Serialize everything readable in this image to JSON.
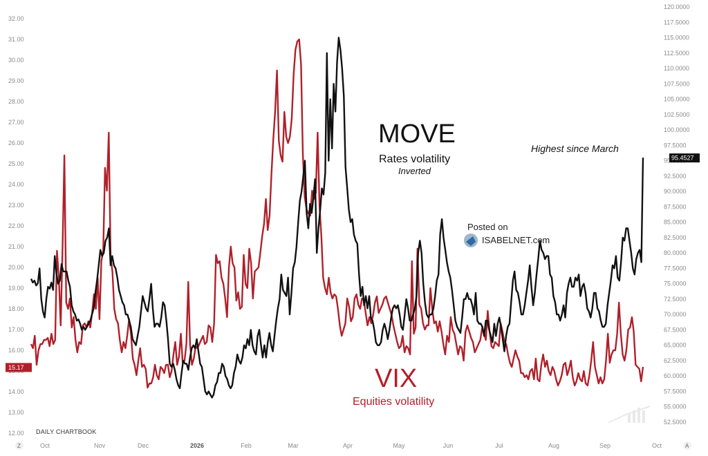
{
  "chart_data": {
    "type": "line",
    "title": "",
    "source": "DAILY CHARTBOOK",
    "x_ticks": [
      "Oct",
      "Nov",
      "Dec",
      "2026",
      "Feb",
      "Mar",
      "Apr",
      "May",
      "Jun",
      "Jul",
      "Aug",
      "Sep",
      "Oct"
    ],
    "left_axis": {
      "labels": [
        "32.00",
        "31.00",
        "30.00",
        "29.00",
        "28.00",
        "27.00",
        "26.00",
        "25.00",
        "24.00",
        "23.00",
        "22.00",
        "21.00",
        "20.00",
        "19.00",
        "18.00",
        "17.00",
        "16.00",
        "15.00",
        "14.00",
        "13.00",
        "12.00"
      ],
      "range": [
        12,
        32.5
      ]
    },
    "right_axis": {
      "labels": [
        "120.0000",
        "117.5000",
        "115.0000",
        "112.5000",
        "110.0000",
        "107.5000",
        "105.0000",
        "102.5000",
        "100.0000",
        "97.5000",
        "95.0000",
        "92.5000",
        "90.0000",
        "87.5000",
        "85.0000",
        "82.5000",
        "80.0000",
        "77.5000",
        "75.0000",
        "72.5000",
        "70.0000",
        "67.5000",
        "65.0000",
        "62.5000",
        "60.0000",
        "57.5000",
        "55.0000",
        "52.5000"
      ],
      "range": [
        50.2,
        120.3
      ],
      "inverted": true,
      "note": "Inverted"
    },
    "series": [
      {
        "name": "VIX",
        "axis": "left",
        "color": "#b0202a",
        "last_value_label": "15.17",
        "values": [
          16.3,
          16.1,
          16.7,
          15.3,
          16.0,
          16.3,
          16.3,
          16.5,
          16.5,
          16.6,
          16.2,
          16.8,
          16.3,
          16.5,
          20.8,
          19.5,
          17.2,
          21.0,
          25.4,
          18.3,
          18.0,
          18.5,
          17.1,
          17.6,
          16.5,
          15.9,
          16.4,
          16.3,
          17.2,
          17.3,
          17.1,
          17.4,
          17.1,
          17.8,
          18.7,
          18.0,
          19.5,
          17.5,
          20.3,
          20.8,
          24.8,
          23.7,
          26.5,
          20.5,
          19.8,
          18.0,
          17.5,
          17.3,
          16.5,
          15.9,
          16.4,
          16.1,
          16.7,
          17.5,
          16.8,
          15.6,
          15.3,
          14.8,
          15.5,
          16.1,
          15.2,
          15.3,
          15.1,
          14.2,
          14.4,
          14.4,
          14.7,
          15.3,
          14.8,
          14.6,
          15.2,
          15.1,
          14.9,
          15.3,
          15.3,
          14.7,
          15.0,
          15.8,
          16.4,
          15.3,
          15.7,
          16.8,
          15.4,
          15.5,
          16.3,
          19.3,
          16.3,
          15.3,
          15.6,
          16.2,
          16.1,
          16.3,
          16.5,
          16.7,
          16.3,
          16.4,
          17.2,
          17.1,
          16.4,
          17.3,
          20.6,
          20.2,
          20.3,
          19.5,
          19.2,
          18.5,
          17.6,
          20.0,
          21.0,
          20.2,
          20.0,
          18.4,
          18.8,
          18.0,
          18.1,
          20.6,
          19.2,
          19.0,
          20.9,
          20.2,
          18.5,
          19.8,
          19.9,
          20.0,
          20.7,
          21.5,
          22.1,
          23.3,
          21.8,
          22.5,
          24.5,
          26.2,
          27.5,
          29.5,
          26.1,
          25.4,
          25.1,
          27.5,
          26.3,
          26.0,
          26.3,
          27.2,
          29.3,
          30.5,
          30.9,
          31.0,
          29.8,
          25.5,
          23.4,
          22.8,
          22.6,
          22.5,
          23.7,
          23.3,
          23.6,
          26.5,
          23.0,
          21.5,
          19.5,
          19.0,
          18.7,
          19.5,
          18.8,
          18.5,
          18.7,
          18.6,
          18.0,
          17.2,
          16.7,
          17.0,
          17.3,
          18.5,
          18.1,
          17.4,
          17.6,
          18.5,
          18.7,
          18.2,
          18.0,
          18.5,
          18.4,
          17.8,
          17.2,
          17.6,
          17.3,
          17.7,
          18.3,
          18.6,
          17.8,
          18.0,
          18.2,
          18.5,
          18.6,
          18.3,
          18.0,
          17.7,
          17.2,
          16.8,
          16.4,
          16.1,
          16.2,
          16.7,
          15.9,
          16.2,
          16.1,
          15.8,
          20.3,
          16.8,
          17.1,
          20.9,
          18.2,
          18.0,
          17.3,
          17.0,
          17.2,
          17.2,
          19.0,
          18.0,
          17.3,
          17.4,
          16.9,
          17.4,
          16.9,
          16.3,
          15.8,
          16.7,
          16.4,
          17.6,
          17.0,
          16.8,
          16.3,
          15.8,
          16.2,
          16.1,
          15.5,
          16.9,
          17.2,
          16.9,
          16.6,
          16.4,
          15.9,
          16.1,
          16.3,
          16.5,
          17.1,
          16.8,
          16.5,
          17.9,
          16.9,
          16.2,
          16.1,
          16.4,
          16.3,
          16.2,
          17.3,
          16.9,
          16.4,
          16.3,
          15.8,
          15.4,
          15.2,
          15.6,
          16.0,
          15.7,
          15.5,
          14.9,
          14.9,
          14.7,
          14.8,
          14.6,
          15.0,
          15.1,
          14.6,
          15.6,
          14.6,
          14.5,
          15.3,
          15.8,
          15.2,
          15.5,
          15.0,
          14.8,
          15.2,
          15.0,
          14.6,
          14.3,
          14.5,
          14.8,
          15.3,
          15.4,
          14.8,
          15.1,
          15.5,
          14.7,
          14.3,
          14.5,
          14.9,
          14.6,
          14.5,
          15.0,
          14.4,
          14.3,
          14.8,
          15.5,
          16.4,
          15.2,
          14.8,
          14.4,
          14.7,
          14.4,
          14.6,
          15.5,
          16.8,
          15.4,
          15.8,
          16.0,
          16.0,
          16.8,
          18.3,
          16.8,
          15.8,
          15.5,
          16.0,
          17.0,
          17.1,
          17.6,
          16.9,
          15.3,
          15.2,
          15.1,
          14.5,
          15.2
        ]
      },
      {
        "name": "MOVE",
        "axis": "right",
        "subtitle": "Rates volatility",
        "color": "#111111",
        "last_value_label": "95.4527",
        "values": [
          75.8,
          75.2,
          75.5,
          74.7,
          75.1,
          77.5,
          72.5,
          70.5,
          69.5,
          72.5,
          74.5,
          74.2,
          75.2,
          74.0,
          79.5,
          76.5,
          75.0,
          75.5,
          78.2,
          77.0,
          77.0,
          77.0,
          75.5,
          74.5,
          71.5,
          70.5,
          70.0,
          69.0,
          69.2,
          68.5,
          67.5,
          68.0,
          67.5,
          68.0,
          68.5,
          69.0,
          70.0,
          71.0,
          73.5,
          75.5,
          78.0,
          80.5,
          79.5,
          80.0,
          82.0,
          82.5,
          84.0,
          78.0,
          79.5,
          78.0,
          77.5,
          76.0,
          74.0,
          73.0,
          72.0,
          71.5,
          70.0,
          70.0,
          69.0,
          68.0,
          66.0,
          65.5,
          65.0,
          66.5,
          68.0,
          70.5,
          73.0,
          72.0,
          71.0,
          70.5,
          72.5,
          75.0,
          71.0,
          68.0,
          68.5,
          68.5,
          68.0,
          69.5,
          72.0,
          71.5,
          69.0,
          66.0,
          62.0,
          61.5,
          62.0,
          61.0,
          59.5,
          58.5,
          58.0,
          60.5,
          62.5,
          62.0,
          62.0,
          61.0,
          63.0,
          64.5,
          65.0,
          64.5,
          66.0,
          64.0,
          62.0,
          61.5,
          59.5,
          57.5,
          57.0,
          57.5,
          57.0,
          56.5,
          57.0,
          58.5,
          59.0,
          60.5,
          60.5,
          62.0,
          61.5,
          60.0,
          59.5,
          58.5,
          58.0,
          58.5,
          60.5,
          61.5,
          63.5,
          62.5,
          62.0,
          63.0,
          65.0,
          64.5,
          66.0,
          65.0,
          67.5,
          65.0,
          64.0,
          63.5,
          66.5,
          67.5,
          65.0,
          63.0,
          65.0,
          63.0,
          65.5,
          67.0,
          65.0,
          64.0,
          66.5,
          69.0,
          71.0,
          72.5,
          76.5,
          74.0,
          73.5,
          73.0,
          76.0,
          70.0,
          73.5,
          77.5,
          78.5,
          81.0,
          85.0,
          88.5,
          90.0,
          92.5,
          95.0,
          86.5,
          84.0,
          88.0,
          86.5,
          89.0,
          92.0,
          80.0,
          84.0,
          87.0,
          90.5,
          89.5,
          93.0,
          112.5,
          95.0,
          105.0,
          97.0,
          107.5,
          103.0,
          111.0,
          115.0,
          113.0,
          110.0,
          105.5,
          94.0,
          90.5,
          87.0,
          85.0,
          85.5,
          83.0,
          82.0,
          81.5,
          76.5,
          73.0,
          74.5,
          71.5,
          73.0,
          71.0,
          73.0,
          69.5,
          69.0,
          67.5,
          65.5,
          65.0,
          65.0,
          65.5,
          67.5,
          68.5,
          67.5,
          66.0,
          67.5,
          69.5,
          71.0,
          71.5,
          71.0,
          71.5,
          70.0,
          68.0,
          67.5,
          70.0,
          72.5,
          71.0,
          69.0,
          69.0,
          70.0,
          71.0,
          73.0,
          80.0,
          82.0,
          80.0,
          75.0,
          72.0,
          70.0,
          69.5,
          70.0,
          70.0,
          71.0,
          73.0,
          75.5,
          76.5,
          83.0,
          85.5,
          82.5,
          80.5,
          78.5,
          77.0,
          76.0,
          74.0,
          71.5,
          69.0,
          68.0,
          67.5,
          67.0,
          69.5,
          72.5,
          72.5,
          73.5,
          72.5,
          72.5,
          71.5,
          70.0,
          73.5,
          69.0,
          68.5,
          68.5,
          68.0,
          66.5,
          69.0,
          69.0,
          67.5,
          66.5,
          65.5,
          68.5,
          66.5,
          68.5,
          69.5,
          68.0,
          66.0,
          64.0,
          66.5,
          68.0,
          68.5,
          72.0,
          75.5,
          77.0,
          74.0,
          73.5,
          72.0,
          70.0,
          70.0,
          71.5,
          73.5,
          75.5,
          78.0,
          74.5,
          71.5,
          73.5,
          76.5,
          79.0,
          82.0,
          80.5,
          80.0,
          79.0,
          79.5,
          79.5,
          76.5,
          76.0,
          73.0,
          72.0,
          70.0,
          70.0,
          69.0,
          70.0,
          71.5,
          69.5,
          73.5,
          75.0,
          76.0,
          74.5,
          74.5,
          76.0,
          75.5,
          76.5,
          73.0,
          74.5,
          75.0,
          73.5,
          71.0,
          70.5,
          69.5,
          71.0,
          73.5,
          73.5,
          71.0,
          70.5,
          69.0,
          68.0,
          68.0,
          68.5,
          71.5,
          73.5,
          75.5,
          78.0,
          77.5,
          79.5,
          76.0,
          75.5,
          78.5,
          82.5,
          82.0,
          84.0,
          84.0,
          82.0,
          80.0,
          77.5,
          76.5,
          79.0,
          80.0,
          80.5,
          78.5,
          95.5
        ]
      }
    ],
    "annotations": {
      "move_label": "MOVE",
      "move_desc": "Rates volatility",
      "move_note": "Inverted",
      "vix_label": "VIX",
      "vix_desc": "Equities volatility",
      "highlight": "Highest since March"
    },
    "colors": {
      "vix": "#b0202a",
      "move": "#111111",
      "grid": "#f2f2f2",
      "axis_text": "#8a8a8a"
    },
    "watermark": {
      "line1": "Posted on",
      "line2": "ISABELNET.com"
    },
    "axis_buttons": {
      "left": "Z",
      "right": "A"
    },
    "grid": false
  }
}
